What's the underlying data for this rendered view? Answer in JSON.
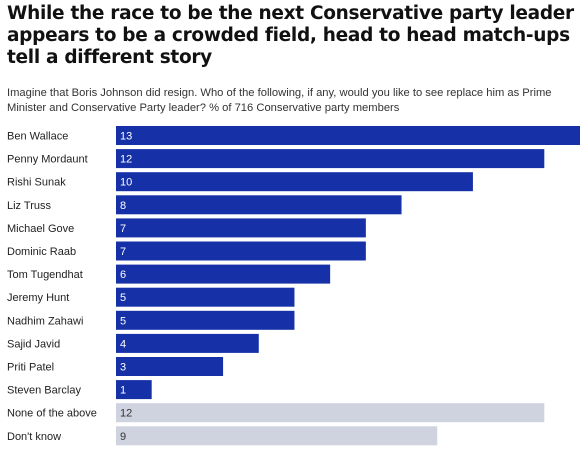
{
  "header": {
    "title": "While the race to be the next Conservative party leader appears to be a crowded field, head to head match-ups tell a different story",
    "subtitle": "Imagine that Boris Johnson did resign. Who of the following, if any, would you like to see replace him as Prime Minister and Conservative Party leader? % of 716 Conservative party members"
  },
  "colors": {
    "candidate_bar": "#1631a8",
    "other_bar": "#cfd3df",
    "candidate_value_text": "#ffffff",
    "other_value_text": "#333333"
  },
  "chart_data": {
    "type": "bar",
    "orientation": "horizontal",
    "unit": "%",
    "categories": [
      "Ben Wallace",
      "Penny Mordaunt",
      "Rishi Sunak",
      "Liz Truss",
      "Michael Gove",
      "Dominic Raab",
      "Tom Tugendhat",
      "Jeremy Hunt",
      "Nadhim Zahawi",
      "Sajid Javid",
      "Priti Patel",
      "Steven Barclay",
      "None of the above",
      "Don't know"
    ],
    "values": [
      13,
      12,
      10,
      8,
      7,
      7,
      6,
      5,
      5,
      4,
      3,
      1,
      12,
      9
    ],
    "highlight": [
      true,
      true,
      true,
      true,
      true,
      true,
      true,
      true,
      true,
      true,
      true,
      true,
      false,
      false
    ],
    "xlim": [
      0,
      13
    ],
    "grid": false,
    "legend": "none"
  }
}
